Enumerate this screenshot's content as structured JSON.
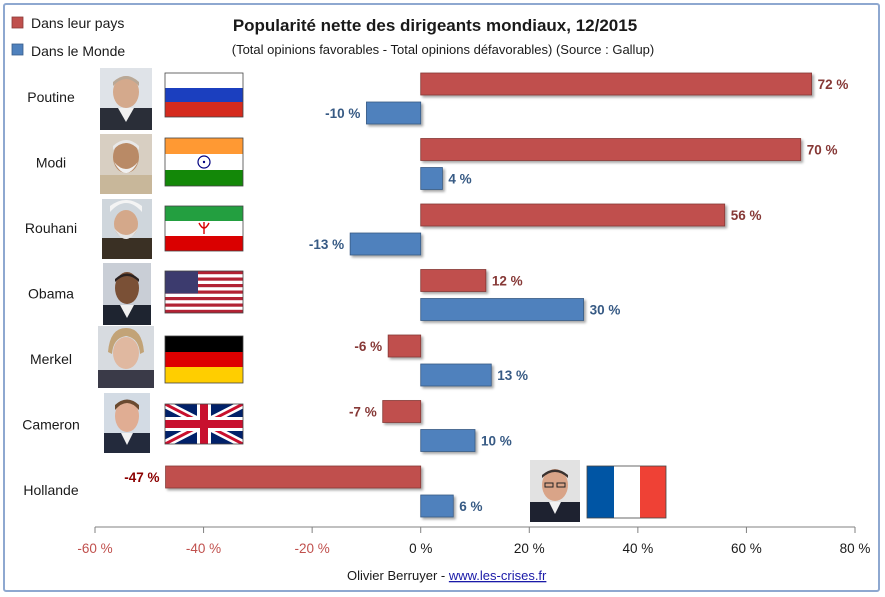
{
  "chart_data": {
    "type": "bar",
    "title": "Popularité nette des dirigeants mondiaux, 12/2015",
    "subtitle": "(Total opinions favorables - Total opinions défavorables) (Source : Gallup)",
    "categories": [
      "Poutine",
      "Modi",
      "Rouhani",
      "Obama",
      "Merkel",
      "Cameron",
      "Hollande"
    ],
    "series": [
      {
        "name": "Dans leur pays",
        "color": "#c0504d",
        "values": [
          72,
          70,
          56,
          12,
          -6,
          -7,
          -47
        ],
        "labels": [
          "72 %",
          "70 %",
          "56 %",
          "12 %",
          "-6 %",
          "-7 %",
          "-47 %"
        ]
      },
      {
        "name": "Dans le Monde",
        "color": "#4f81bd",
        "values": [
          -10,
          4,
          -13,
          30,
          13,
          10,
          6
        ],
        "labels": [
          "-10 %",
          "4 %",
          "-13 %",
          "30 %",
          "13 %",
          "10 %",
          "6 %"
        ]
      }
    ],
    "xlim": [
      -60,
      80
    ],
    "xticks": [
      -60,
      -40,
      -20,
      0,
      20,
      40,
      60,
      80
    ],
    "xtick_labels": [
      "-60 %",
      "-40 %",
      "-20 %",
      "0 %",
      "20 %",
      "40 %",
      "60 %",
      "80 %"
    ],
    "negative_tick_color": "#c0504d",
    "legend_position": "top-left",
    "grid": false,
    "flags": [
      "russia-flag",
      "india-flag",
      "iran-flag",
      "usa-flag",
      "germany-flag",
      "uk-flag",
      "france-flag"
    ],
    "portraits": [
      "poutine-portrait",
      "modi-portrait",
      "rouhani-portrait",
      "obama-portrait",
      "merkel-portrait",
      "cameron-portrait",
      "hollande-portrait"
    ]
  },
  "credit": {
    "author": "Olivier Berruyer - ",
    "link": "www.les-crises.fr"
  }
}
